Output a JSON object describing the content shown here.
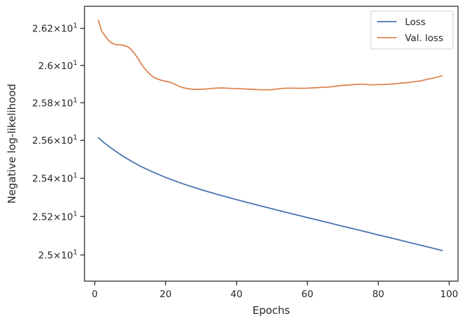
{
  "chart_data": {
    "type": "line",
    "xlabel": "Epochs",
    "ylabel": "Negative log-likelihood",
    "xlim": [
      -2.9,
      102.5
    ],
    "ylim": [
      24.865,
      26.32
    ],
    "y_scale": "log",
    "grid": false,
    "legend_placement": "top-right",
    "x_ticks": [
      0,
      20,
      40,
      60,
      80,
      100
    ],
    "y_ticks": [
      {
        "value": 25.0,
        "mantissa": "2.5",
        "exp": "1"
      },
      {
        "value": 25.2,
        "mantissa": "2.52",
        "exp": "1"
      },
      {
        "value": 25.4,
        "mantissa": "2.54",
        "exp": "1"
      },
      {
        "value": 25.6,
        "mantissa": "2.56",
        "exp": "1"
      },
      {
        "value": 25.8,
        "mantissa": "2.58",
        "exp": "1"
      },
      {
        "value": 26.0,
        "mantissa": "2.6",
        "exp": "1"
      },
      {
        "value": 26.2,
        "mantissa": "2.62",
        "exp": "1"
      }
    ],
    "series": [
      {
        "name": "Loss",
        "color": "#4c72b0",
        "x": [
          1,
          3,
          5,
          7,
          10,
          13,
          16,
          20,
          25,
          30,
          35,
          40,
          45,
          50,
          55,
          60,
          65,
          70,
          75,
          80,
          85,
          90,
          95,
          98
        ],
        "y": [
          25.614,
          25.582,
          25.554,
          25.528,
          25.493,
          25.462,
          25.436,
          25.404,
          25.37,
          25.34,
          25.313,
          25.288,
          25.264,
          25.24,
          25.217,
          25.194,
          25.172,
          25.149,
          25.127,
          25.104,
          25.082,
          25.059,
          25.037,
          25.023
        ]
      },
      {
        "name": "Val. loss",
        "color": "#dd8452",
        "x": [
          1,
          2,
          3,
          4,
          5,
          6,
          7,
          8,
          9,
          10,
          11,
          12,
          13,
          14,
          15,
          16,
          17,
          18,
          19,
          20,
          21,
          22,
          23,
          24,
          25,
          26,
          28,
          30,
          32,
          34,
          36,
          38,
          40,
          42,
          44,
          46,
          48,
          50,
          52,
          54,
          56,
          58,
          60,
          62,
          64,
          66,
          68,
          70,
          72,
          74,
          76,
          78,
          80,
          82,
          84,
          86,
          88,
          90,
          92,
          94,
          96,
          98
        ],
        "y": [
          26.244,
          26.183,
          26.157,
          26.132,
          26.118,
          26.112,
          26.111,
          26.109,
          26.103,
          26.091,
          26.069,
          26.043,
          26.012,
          25.985,
          25.963,
          25.945,
          25.932,
          25.925,
          25.919,
          25.915,
          25.911,
          25.904,
          25.895,
          25.886,
          25.88,
          25.876,
          25.871,
          25.872,
          25.874,
          25.878,
          25.879,
          25.877,
          25.876,
          25.874,
          25.872,
          25.87,
          25.869,
          25.87,
          25.875,
          25.878,
          25.878,
          25.877,
          25.878,
          25.88,
          25.882,
          25.884,
          25.888,
          25.893,
          25.895,
          25.899,
          25.899,
          25.895,
          25.897,
          25.898,
          25.9,
          25.904,
          25.907,
          25.912,
          25.917,
          25.926,
          25.934,
          25.944
        ]
      }
    ]
  }
}
